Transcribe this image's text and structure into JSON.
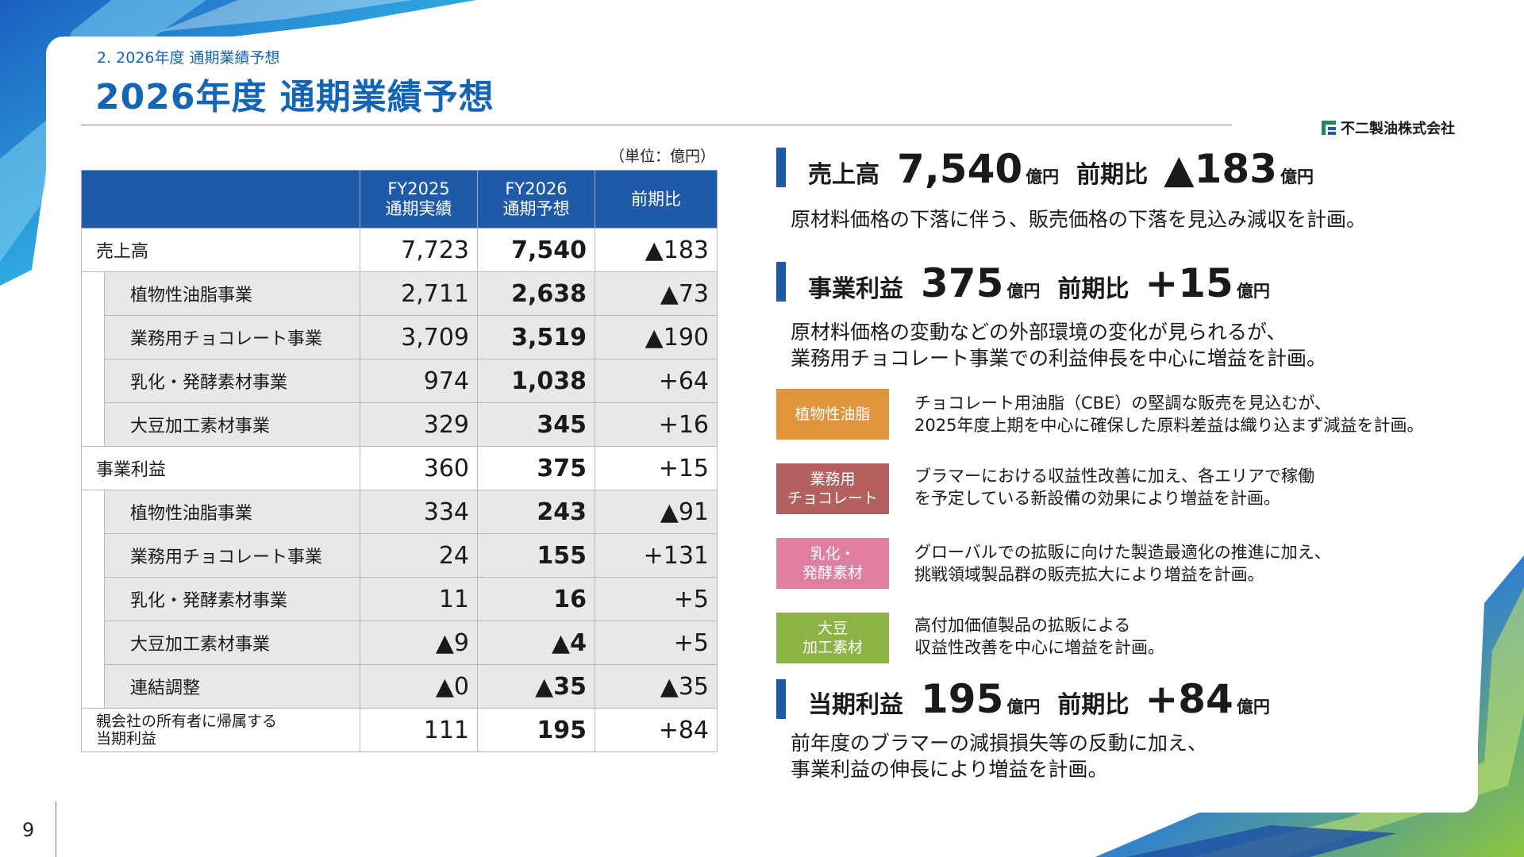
{
  "header": {
    "breadcrumb": "2. 2026年度 通期業績予想",
    "title": "2026年度 通期業績予想",
    "logo_text": "不二製油株式会社"
  },
  "table": {
    "unit_note": "（単位：億円）",
    "columns": [
      {
        "line1": "FY2025",
        "line2": "通期実績"
      },
      {
        "line1": "FY2026",
        "line2": "通期予想"
      },
      {
        "line1": "前期比",
        "line2": ""
      }
    ],
    "rows": [
      {
        "label": "売上高",
        "fy2025": "7,723",
        "fy2026": "7,540",
        "diff": "▲183"
      },
      {
        "label": "植物性油脂事業",
        "fy2025": "2,711",
        "fy2026": "2,638",
        "diff": "▲73"
      },
      {
        "label": "業務用チョコレート事業",
        "fy2025": "3,709",
        "fy2026": "3,519",
        "diff": "▲190"
      },
      {
        "label": "乳化・発酵素材事業",
        "fy2025": "974",
        "fy2026": "1,038",
        "diff": "+64"
      },
      {
        "label": "大豆加工素材事業",
        "fy2025": "329",
        "fy2026": "345",
        "diff": "+16"
      },
      {
        "label": "事業利益",
        "fy2025": "360",
        "fy2026": "375",
        "diff": "+15"
      },
      {
        "label": "植物性油脂事業",
        "fy2025": "334",
        "fy2026": "243",
        "diff": "▲91"
      },
      {
        "label": "業務用チョコレート事業",
        "fy2025": "24",
        "fy2026": "155",
        "diff": "+131"
      },
      {
        "label": "乳化・発酵素材事業",
        "fy2025": "11",
        "fy2026": "16",
        "diff": "+5"
      },
      {
        "label": "大豆加工素材事業",
        "fy2025": "▲9",
        "fy2026": "▲4",
        "diff": "+5"
      },
      {
        "label": "連結調整",
        "fy2025": "▲0",
        "fy2026": "▲35",
        "diff": "▲35"
      },
      {
        "label_line1": "親会社の所有者に帰属する",
        "label_line2": "当期利益",
        "fy2025": "111",
        "fy2026": "195",
        "diff": "+84"
      }
    ]
  },
  "highlights": {
    "sales": {
      "label": "売上高",
      "value": "7,540",
      "unit": "億円",
      "comp_label": "前期比",
      "comp_value": "▲183",
      "comp_unit": "億円",
      "desc": "原材料価格の下落に伴う、販売価格の下落を見込み減収を計画。"
    },
    "profit": {
      "label": "事業利益",
      "value": "375",
      "unit": "億円",
      "comp_label": "前期比",
      "comp_value": "+15",
      "comp_unit": "億円",
      "desc_line1": "原材料価格の変動などの外部環境の変化が見られるが、",
      "desc_line2": "業務用チョコレート事業での利益伸長を中心に増益を計画。"
    },
    "net": {
      "label": "当期利益",
      "value": "195",
      "unit": "億円",
      "comp_label": "前期比",
      "comp_value": "+84",
      "comp_unit": "億円",
      "desc_line1": "前年度のブラマーの減損損失等の反動に加え、",
      "desc_line2": "事業利益の伸長により増益を計画。"
    }
  },
  "segments": [
    {
      "tag_line1": "植物性油脂",
      "tag_line2": "",
      "color": "#e0953a",
      "text_line1": "チョコレート用油脂（CBE）の堅調な販売を見込むが、",
      "text_line2": "2025年度上期を中心に確保した原料差益は織り込まず減益を計画。"
    },
    {
      "tag_line1": "業務用",
      "tag_line2": "チョコレート",
      "color": "#b3605e",
      "text_line1": "ブラマーにおける収益性改善に加え、各エリアで稼働",
      "text_line2": "を予定している新設備の効果により増益を計画。"
    },
    {
      "tag_line1": "乳化・",
      "tag_line2": "発酵素材",
      "color": "#e07ea0",
      "text_line1": "グローバルでの拡販に向けた製造最適化の推進に加え、",
      "text_line2": "挑戦領域製品群の販売拡大により増益を計画。"
    },
    {
      "tag_line1": "大豆",
      "tag_line2": "加工素材",
      "color": "#8db346",
      "text_line1": "高付加価値製品の拡販による",
      "text_line2": "収益性改善を中心に増益を計画。"
    }
  ],
  "footer": {
    "page_number": "9"
  },
  "colors": {
    "brand_blue": "#1e5aa8",
    "title_blue": "#1565b7"
  }
}
